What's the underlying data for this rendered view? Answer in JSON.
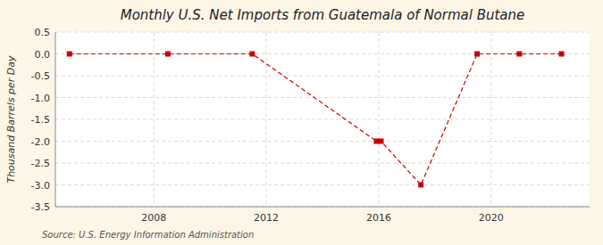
{
  "chart_data": {
    "type": "line",
    "title": "Monthly U.S. Net Imports from Guatemala of Normal Butane",
    "ylabel": "Thousand Barrels per Day",
    "annotations": [
      "Source: U.S. Energy Information Administration"
    ],
    "x": [
      2005.0,
      2008.5,
      2011.5,
      2015.92,
      2016.08,
      2017.5,
      2019.5,
      2021.0,
      2022.5
    ],
    "values": [
      0.0,
      0.0,
      0.0,
      -2.0,
      -2.0,
      -3.0,
      0.0,
      0.0,
      0.0
    ],
    "color": "#cc0000",
    "marker": "square",
    "line_style": "dashed",
    "xlim": [
      2004.5,
      2023.5
    ],
    "ylim": [
      -3.5,
      0.5
    ],
    "xticks": [
      2008,
      2012,
      2016,
      2020
    ],
    "yticks": [
      0.5,
      {
        "value": 0.0,
        "label": "0.0"
      },
      -0.5,
      {
        "value": -1.0,
        "label": "-1.0"
      },
      -1.5,
      {
        "value": -2.0,
        "label": "-2.0"
      },
      -2.5,
      {
        "value": -3.0,
        "label": "-3.0"
      },
      -3.5
    ],
    "grid": true
  }
}
